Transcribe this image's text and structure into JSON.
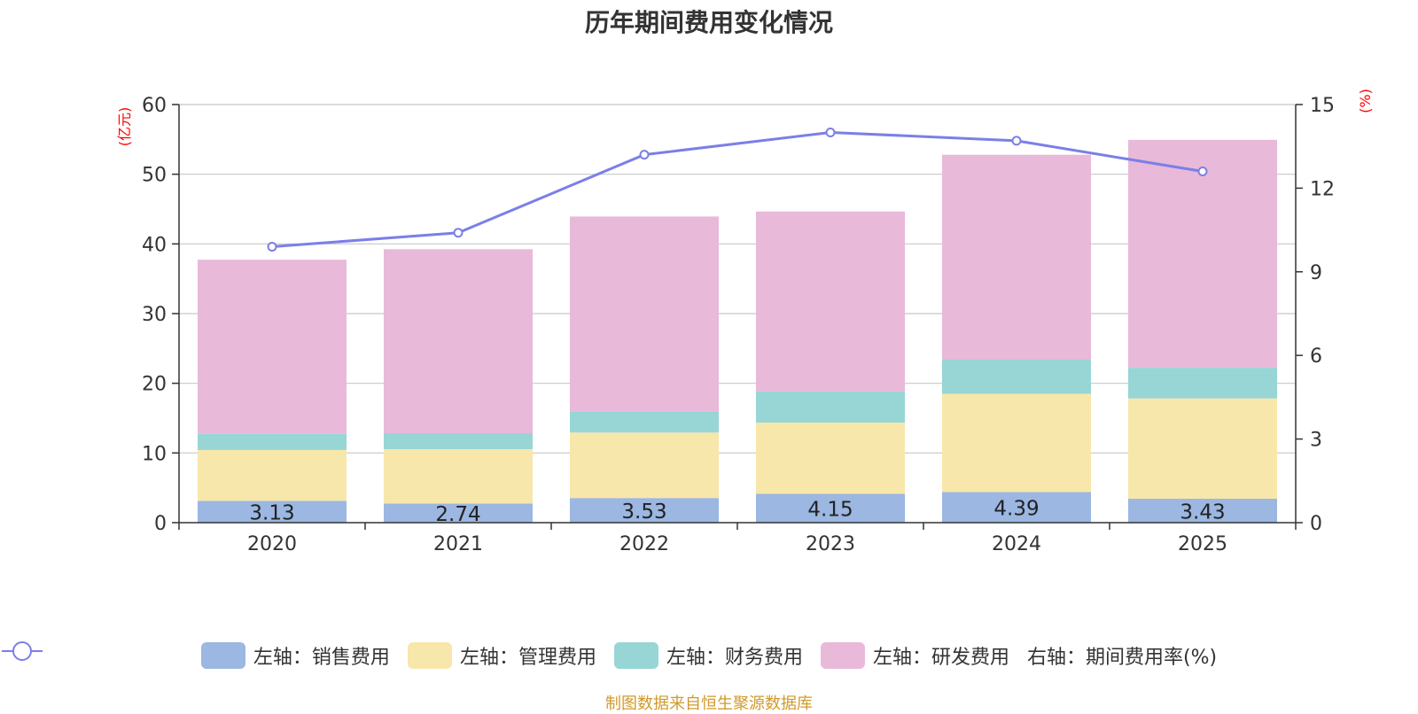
{
  "title": "历年期间费用变化情况",
  "footer": "制图数据来自恒生聚源数据库",
  "chart_data": {
    "type": "bar",
    "stacked": true,
    "categories": [
      "2020",
      "2021",
      "2022",
      "2023",
      "2024",
      "2025"
    ],
    "left_axis": {
      "unit_label": "(亿元)",
      "ylim": [
        0,
        60
      ],
      "ticks": [
        "0",
        "10",
        "20",
        "30",
        "40",
        "50",
        "60"
      ]
    },
    "right_axis": {
      "unit_label": "(%)",
      "ylim": [
        0,
        15
      ],
      "ticks": [
        "0",
        "3",
        "6",
        "9",
        "12",
        "15"
      ]
    },
    "series": [
      {
        "name": "左轴：销售费用",
        "axis": "left",
        "color": "#9bb7e2",
        "values": [
          3.13,
          2.74,
          3.53,
          4.15,
          4.39,
          3.43
        ],
        "data_labels": [
          "3.13",
          "2.74",
          "3.53",
          "4.15",
          "4.39",
          "3.43"
        ]
      },
      {
        "name": "左轴：管理费用",
        "axis": "left",
        "color": "#f8e7aa",
        "values": [
          7.3,
          7.8,
          9.4,
          10.2,
          14.1,
          14.4
        ]
      },
      {
        "name": "左轴：财务费用",
        "axis": "left",
        "color": "#98d5d5",
        "values": [
          2.3,
          2.3,
          3.0,
          4.5,
          4.9,
          4.4
        ]
      },
      {
        "name": "左轴：研发费用",
        "axis": "left",
        "color": "#e8b9d9",
        "values": [
          25.0,
          26.4,
          28.0,
          25.8,
          29.4,
          32.7
        ]
      },
      {
        "name": "右轴：期间费用率(%)",
        "axis": "right",
        "type": "line",
        "color": "#7b7fe8",
        "values": [
          9.9,
          10.4,
          13.2,
          14.0,
          13.7,
          12.6
        ]
      }
    ],
    "grid": true,
    "legend_position": "bottom"
  }
}
